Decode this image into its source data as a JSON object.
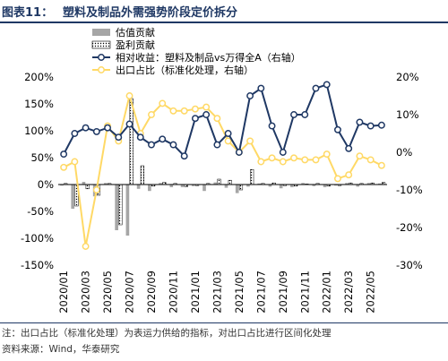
{
  "figure": {
    "label": "图表11：",
    "title": "塑料及制品外需强势阶段定价拆分"
  },
  "colors": {
    "title": "#1f3864",
    "valuation_bar": "#a6a6a6",
    "profit_bar": "#ffffff",
    "relative_line": "#1f3864",
    "export_line": "#ffd966"
  },
  "chart_data": {
    "type": "bar+line",
    "x": [
      "2020/01",
      "2020/02",
      "2020/03",
      "2020/04",
      "2020/05",
      "2020/06",
      "2020/07",
      "2020/08",
      "2020/09",
      "2020/10",
      "2020/11",
      "2020/12",
      "2021/01",
      "2021/02",
      "2021/03",
      "2021/04",
      "2021/05",
      "2021/06",
      "2021/07",
      "2021/08",
      "2021/09",
      "2021/10",
      "2021/11",
      "2021/12",
      "2022/01",
      "2022/02",
      "2022/03",
      "2022/04",
      "2022/05",
      "2022/06"
    ],
    "xtick_labels": [
      "2020/01",
      "2020/03",
      "2020/05",
      "2020/07",
      "2020/09",
      "2020/11",
      "2021/01",
      "2021/03",
      "2021/05",
      "2021/07",
      "2021/09",
      "2021/11",
      "2022/01",
      "2022/03",
      "2022/05"
    ],
    "left_axis": {
      "ylim": [
        -150,
        200
      ],
      "ticks": [
        "-150%",
        "-100%",
        "-50%",
        "0%",
        "50%",
        "100%",
        "150%",
        "200%"
      ],
      "tick_values": [
        -150,
        -100,
        -50,
        0,
        50,
        100,
        150,
        200
      ]
    },
    "right_axis": {
      "ylim": [
        -30,
        20
      ],
      "ticks": [
        "-30%",
        "-20%",
        "-10%",
        "0%",
        "10%",
        "20%"
      ],
      "tick_values": [
        -30,
        -20,
        -10,
        0,
        10,
        20
      ]
    },
    "legend": {
      "position": "top",
      "items": [
        {
          "key": "valuation",
          "label": "估值贡献"
        },
        {
          "key": "profit",
          "label": "盈利贡献"
        },
        {
          "key": "relative",
          "label": "相对收益：塑料及制品vs万得全A（右轴）"
        },
        {
          "key": "export",
          "label": "出口占比（标准化处理，右轴）"
        }
      ]
    },
    "series": [
      {
        "name": "估值贡献",
        "type": "bar",
        "axis": "left",
        "values": [
          -2,
          -45,
          5,
          -22,
          3,
          -85,
          -95,
          -8,
          -12,
          3,
          -5,
          -5,
          -3,
          -12,
          4,
          -6,
          -16,
          -4,
          2,
          -4,
          -7,
          -5,
          3,
          -3,
          -5,
          -2,
          3,
          -4,
          3,
          2
        ]
      },
      {
        "name": "盈利贡献",
        "type": "bar",
        "axis": "left",
        "values": [
          2,
          -40,
          -8,
          -20,
          2,
          -75,
          160,
          35,
          -3,
          4,
          2,
          -4,
          -2,
          2,
          10,
          8,
          -10,
          28,
          2,
          3,
          -2,
          -3,
          1,
          2,
          -3,
          -2,
          3,
          2,
          3,
          4
        ]
      },
      {
        "name": "相对收益：塑料及制品vs万得全A（右轴）",
        "type": "line",
        "axis": "right",
        "values": [
          -0.5,
          5,
          6.5,
          5.5,
          6.5,
          4,
          7.5,
          4,
          2,
          3.5,
          2,
          -1,
          9,
          10,
          2,
          5,
          0,
          15,
          17,
          7,
          0,
          10,
          10,
          17,
          18,
          6,
          1,
          8,
          7,
          7.2
        ]
      },
      {
        "name": "出口占比（标准化处理，右轴）",
        "type": "line",
        "axis": "right",
        "values": [
          -4,
          -2.5,
          -25,
          -10,
          7,
          3,
          15,
          5,
          10,
          13,
          11,
          11,
          11.5,
          12,
          9,
          3,
          0,
          3,
          -2.5,
          -1.5,
          -2.5,
          -1.5,
          -2,
          -2,
          -0.5,
          -7,
          -6,
          -1,
          -2,
          -3.5
        ]
      }
    ]
  },
  "notes": {
    "line1": "注：出口占比（标准化处理）为表运力供给的指标，对出口占比进行区间化处理",
    "line2": "资料来源：Wind，华泰研究"
  }
}
